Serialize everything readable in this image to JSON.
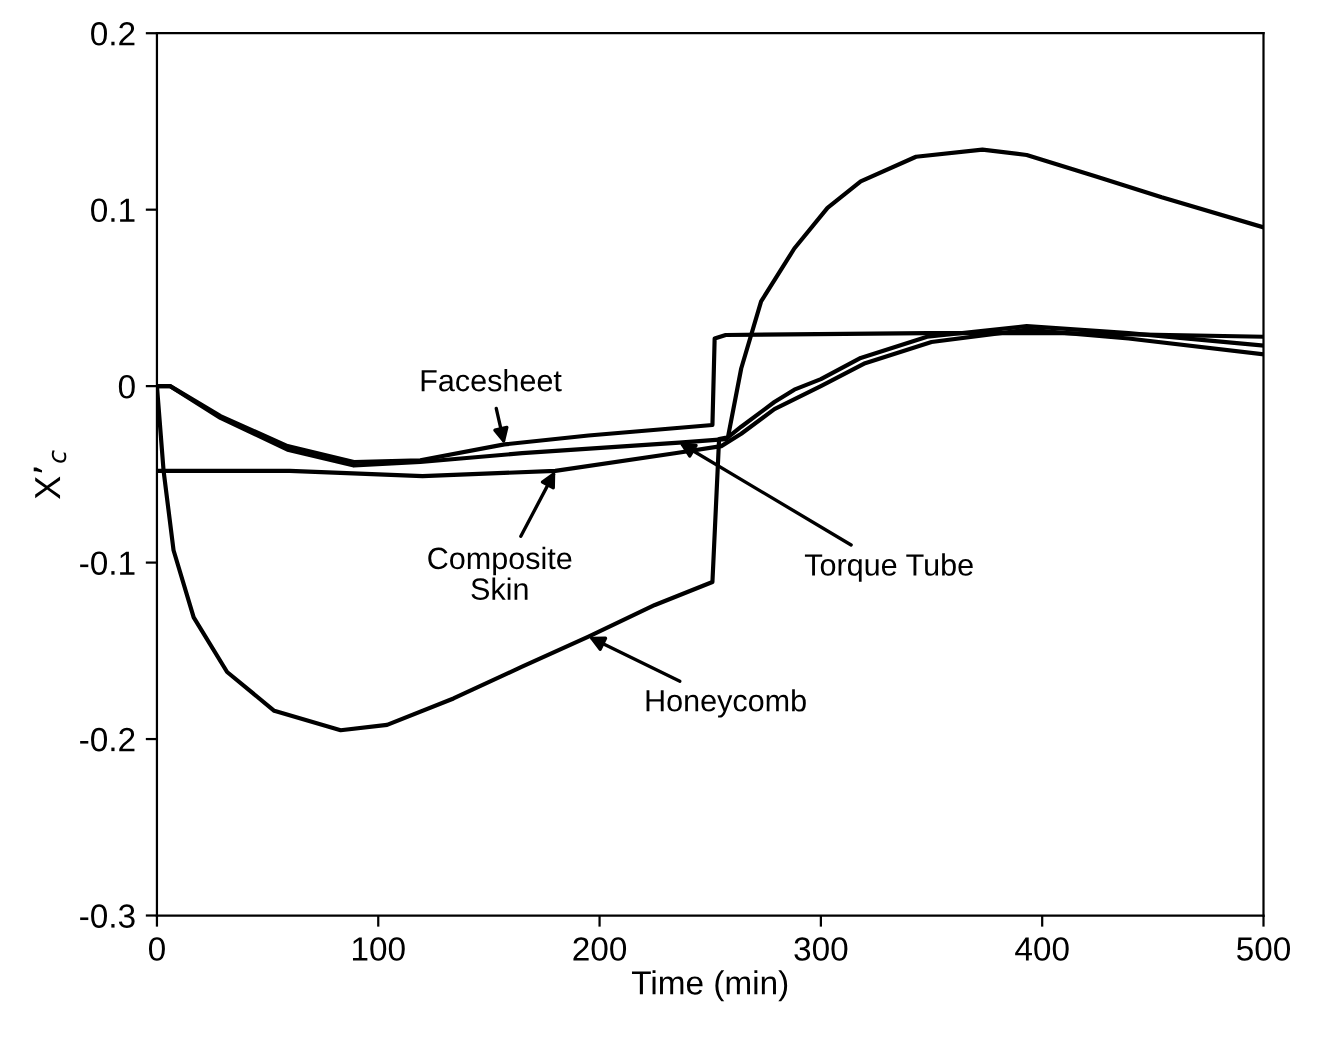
{
  "chart_data": {
    "type": "line",
    "xlabel": "Time (min)",
    "ylabel": "X’$_{c}$",
    "xlim": [
      0,
      500
    ],
    "ylim": [
      -0.3,
      0.2
    ],
    "xticks": [
      0,
      100,
      200,
      300,
      400,
      500
    ],
    "yticks": [
      -0.3,
      -0.2,
      -0.1,
      0,
      0.1,
      0.2
    ],
    "grid": false,
    "legend": false,
    "marker": "none",
    "line_style": "solid",
    "series": [
      {
        "color": "#000000",
        "x": [
          0,
          3,
          7.5,
          16.6,
          31.7,
          53,
          83,
          104,
          134,
          165,
          195,
          225,
          251,
          254,
          258,
          264,
          273,
          288,
          303,
          318,
          343,
          373,
          393,
          424,
          454,
          500
        ],
        "values": [
          0,
          -0.048,
          -0.093,
          -0.131,
          -0.162,
          -0.184,
          -0.195,
          -0.192,
          -0.177,
          -0.159,
          -0.142,
          -0.124,
          -0.111,
          -0.03,
          -0.029,
          0.01,
          0.048,
          0.078,
          0.101,
          0.116,
          0.13,
          0.134,
          0.131,
          0.119,
          0.107,
          0.09
        ]
      },
      {
        "color": "#000000",
        "x": [
          0,
          6,
          28.7,
          59,
          89,
          119,
          157,
          195,
          251,
          252,
          257,
          348,
          409,
          500
        ],
        "values": [
          0,
          0,
          -0.017,
          -0.034,
          -0.043,
          -0.042,
          -0.033,
          -0.028,
          -0.022,
          0.027,
          0.029,
          0.03,
          0.03,
          0.028
        ]
      },
      {
        "color": "#000000",
        "x": [
          0,
          6,
          28.7,
          59,
          89,
          119,
          165,
          236,
          257,
          264,
          279,
          288,
          300,
          318,
          348,
          393,
          439,
          500
        ],
        "values": [
          0,
          0,
          -0.018,
          -0.036,
          -0.045,
          -0.043,
          -0.038,
          -0.032,
          -0.03,
          -0.023,
          -0.009,
          -0.002,
          0.004,
          0.016,
          0.028,
          0.034,
          0.03,
          0.023
        ]
      },
      {
        "color": "#000000",
        "x": [
          1,
          60,
          100,
          120,
          180,
          234,
          255,
          264,
          279,
          300,
          320,
          350,
          393,
          439,
          500
        ],
        "values": [
          -0.048,
          -0.048,
          -0.05,
          -0.051,
          -0.048,
          -0.038,
          -0.034,
          -0.027,
          -0.013,
          0.0,
          0.013,
          0.025,
          0.032,
          0.027,
          0.018
        ]
      }
    ],
    "annotations": [
      {
        "text": "Facesheet",
        "x": 157,
        "y": -0.033
      },
      {
        "text": "Composite\nSkin",
        "x": 180,
        "y": -0.048
      },
      {
        "text": "Torque Tube",
        "x": 236,
        "y": -0.032
      },
      {
        "text": "Honeycomb",
        "x": 195,
        "y": -0.142
      }
    ]
  }
}
